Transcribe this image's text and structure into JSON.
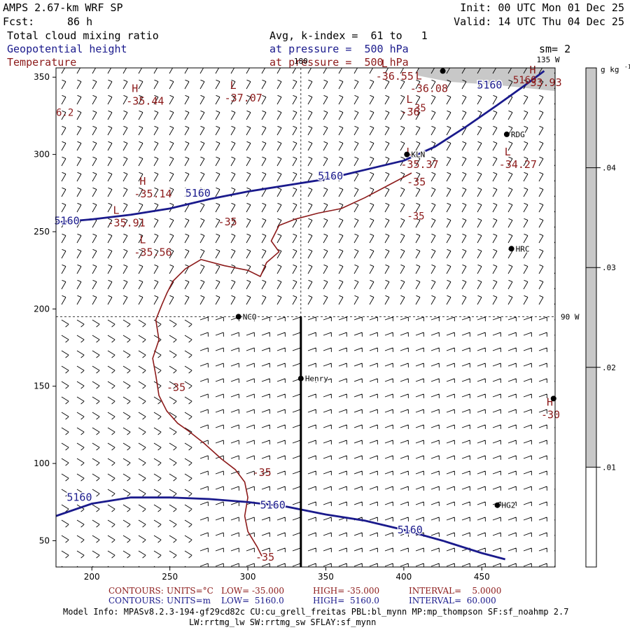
{
  "header": {
    "model": "AMPS 2.67-km WRF SP",
    "forecast_label": "Fcst:",
    "forecast_hours": "86 h",
    "init": "Init: 00 UTC Mon 01 Dec 25",
    "valid": "Valid: 14 UTC Thu 04 Dec 25",
    "field1": "Total cloud mixing ratio",
    "field1_avg": "Avg, k-index =  61 to   1",
    "field2": "Geopotential height",
    "field2_level": "at pressure =  500 hPa",
    "smoothing": "sm= 2",
    "field3": "Temperature",
    "field3_level": "at pressure =  500 hPa"
  },
  "colors": {
    "height": "#1a1a8c",
    "temperature": "#8c1a1a",
    "cloud": "#c8c8c8"
  },
  "chart_data": {
    "type": "heatmap",
    "x_ticks": [
      200,
      250,
      300,
      350,
      400,
      450
    ],
    "y_ticks": [
      50,
      100,
      150,
      200,
      250,
      300,
      350
    ],
    "xlim": [
      177,
      497
    ],
    "ylim": [
      33,
      356
    ],
    "meridians": [
      {
        "label": "180",
        "x": 334
      },
      {
        "label": "135 W",
        "x": 497
      },
      {
        "label": "90 W",
        "y": 195
      }
    ],
    "cross_section": {
      "x": 334,
      "y": [
        33,
        195
      ]
    },
    "stations": [
      {
        "name": "NCO",
        "x": 294,
        "y": 195
      },
      {
        "name": "Henry",
        "x": 334,
        "y": 155
      },
      {
        "name": "KLN",
        "x": 402,
        "y": 300
      },
      {
        "name": "RDG",
        "x": 466,
        "y": 313
      },
      {
        "name": "HRC",
        "x": 469,
        "y": 239
      },
      {
        "name": "HG2",
        "x": 460,
        "y": 73
      },
      {
        "name": "",
        "x": 425,
        "y": 354
      },
      {
        "name": "",
        "x": 496,
        "y": 142
      }
    ],
    "height_contours": [
      {
        "value": 5160,
        "points": [
          [
            177,
            256
          ],
          [
            200,
            258
          ],
          [
            225,
            261
          ],
          [
            250,
            265
          ],
          [
            275,
            271
          ],
          [
            300,
            276
          ],
          [
            325,
            280
          ],
          [
            350,
            284
          ],
          [
            375,
            290
          ],
          [
            400,
            296
          ],
          [
            420,
            305
          ],
          [
            440,
            318
          ],
          [
            460,
            332
          ],
          [
            478,
            345
          ],
          [
            490,
            354
          ]
        ],
        "labels": [
          [
            184,
            257
          ],
          [
            268,
            275
          ],
          [
            353,
            286
          ],
          [
            455,
            345
          ]
        ]
      },
      {
        "value": 5160,
        "points": [
          [
            177,
            66
          ],
          [
            200,
            74
          ],
          [
            225,
            78
          ],
          [
            250,
            78
          ],
          [
            275,
            77
          ],
          [
            300,
            75
          ],
          [
            325,
            72
          ],
          [
            350,
            67
          ],
          [
            375,
            63
          ],
          [
            400,
            57
          ],
          [
            425,
            50
          ],
          [
            450,
            42
          ],
          [
            465,
            38
          ]
        ],
        "labels": [
          [
            192,
            78
          ],
          [
            316,
            73
          ],
          [
            404,
            57
          ]
        ]
      }
    ],
    "temperature_contours": [
      {
        "value": -35,
        "points": [
          [
            405,
            288
          ],
          [
            390,
            280
          ],
          [
            375,
            272
          ],
          [
            360,
            265
          ],
          [
            345,
            262
          ],
          [
            330,
            258
          ],
          [
            320,
            254
          ],
          [
            315,
            244
          ],
          [
            320,
            237
          ],
          [
            312,
            230
          ],
          [
            308,
            221
          ],
          [
            300,
            225
          ],
          [
            285,
            228
          ],
          [
            270,
            232
          ],
          [
            260,
            226
          ],
          [
            252,
            218
          ],
          [
            248,
            210
          ],
          [
            245,
            203
          ],
          [
            241,
            193
          ],
          [
            243,
            180
          ],
          [
            239,
            168
          ],
          [
            241,
            157
          ],
          [
            243,
            144
          ],
          [
            248,
            134
          ],
          [
            255,
            126
          ],
          [
            262,
            121
          ],
          [
            272,
            113
          ],
          [
            283,
            103
          ],
          [
            292,
            96
          ],
          [
            298,
            88
          ],
          [
            300,
            78
          ],
          [
            298,
            66
          ],
          [
            300,
            56
          ],
          [
            306,
            46
          ],
          [
            309,
            40
          ]
        ],
        "labels": [
          [
            254,
            147
          ],
          [
            287,
            254
          ],
          [
            309,
            92
          ],
          [
            311,
            37
          ],
          [
            408,
            280
          ]
        ]
      }
    ],
    "extrema_labels": [
      {
        "symbol": "H",
        "value": "-35.44",
        "x": 222,
        "y": 335
      },
      {
        "symbol": "L",
        "value": "-37.07",
        "x": 285,
        "y": 337
      },
      {
        "symbol": "H",
        "value": "-35.14",
        "x": 227,
        "y": 275
      },
      {
        "symbol": "L",
        "value": "-35.91",
        "x": 210,
        "y": 256
      },
      {
        "symbol": "L",
        "value": "-35.56",
        "x": 227,
        "y": 237
      },
      {
        "symbol": "L",
        "value": "-36.55",
        "x": 382,
        "y": 351
      },
      {
        "symbol": "L",
        "value": "-36.08",
        "x": 404,
        "y": 343
      },
      {
        "symbol": "L",
        "value": "-36",
        "x": 398,
        "y": 328
      },
      {
        "symbol": "L",
        "value": "-35.37",
        "x": 398,
        "y": 294
      },
      {
        "symbol": "L",
        "value": "-34.27",
        "x": 461,
        "y": 294
      },
      {
        "symbol": "H",
        "value": "-33.93",
        "x": 477,
        "y": 347
      },
      {
        "symbol": "H",
        "value": "-30",
        "x": 488,
        "y": 132
      }
    ],
    "corner_labels": [
      {
        "text": "6.2",
        "x": 177,
        "y": 325
      },
      {
        "text": "-35",
        "x": 403,
        "y": 328
      },
      {
        "text": "-35",
        "x": 402,
        "y": 258
      },
      {
        "text": "5160",
        "x": 470,
        "y": 346
      }
    ],
    "colorbar": {
      "unit": "g kg",
      "unit_sup": "-1",
      "ticks": [
        ".01",
        ".02",
        ".03",
        ".04"
      ],
      "levels": [
        0.01,
        0.02,
        0.03,
        0.04
      ],
      "vmax": 0.05,
      "shaded_from": 0.01
    },
    "cloud_region": {
      "x": [
        409,
        497
      ],
      "y": [
        345,
        356
      ]
    }
  },
  "footer": {
    "row1": {
      "label": "CONTOURS:",
      "units": "UNITS=°C",
      "low": "LOW= -35.000",
      "high": "HIGH= -35.000",
      "interval": "INTERVAL=    5.0000"
    },
    "row2": {
      "label": "CONTOURS:",
      "units": "UNITS=m",
      "low": "LOW=  5160.0",
      "high": "HIGH=  5160.0",
      "interval": "INTERVAL=  60.000"
    },
    "model_info": "Model Info: MPASv8.2.3-194-gf29cd82c CU:cu_grell_freitas PBL:bl_mynn MP:mp_thompson SF:sf_noahmp 2.7",
    "model_info2": "LW:rrtmg_lw SW:rrtmg_sw SFLAY:sf_mynn"
  }
}
